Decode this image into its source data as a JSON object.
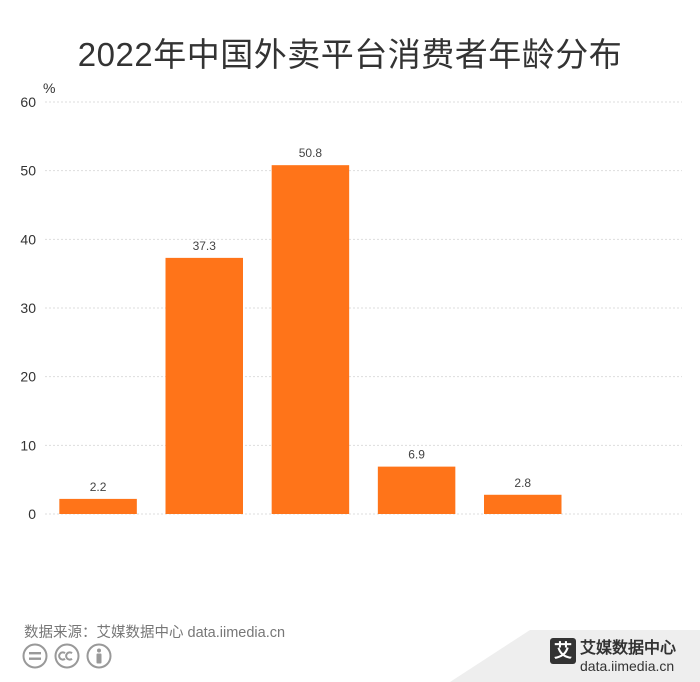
{
  "title": "2022年中国外卖平台消费者年龄分布",
  "source_text": "数据来源：艾媒数据中心 data.iimedia.cn",
  "brand": {
    "name": "艾媒数据中心",
    "url": "data.iimedia.cn",
    "logo_char": "艾"
  },
  "colors": {
    "bar": "#FF7419",
    "grid": "#DDDDDD",
    "axis_text": "#333333",
    "label_text": "#444444",
    "title": "#333333"
  },
  "chart_data": {
    "type": "bar",
    "title": "2022年中国外卖平台消费者年龄分布",
    "xlabel": "",
    "ylabel": "%",
    "categories": [
      "",
      "",
      "",
      "",
      "",
      ""
    ],
    "values": [
      2.2,
      37.3,
      50.8,
      6.9,
      2.8,
      null
    ],
    "data_labels": [
      "2.2",
      "37.3",
      "50.8",
      "6.9",
      "2.8",
      ""
    ],
    "y_ticks": [
      "0",
      "10",
      "20",
      "30",
      "40",
      "50",
      "60"
    ],
    "ylim": [
      0,
      60
    ],
    "grid": true,
    "legend": "none"
  }
}
